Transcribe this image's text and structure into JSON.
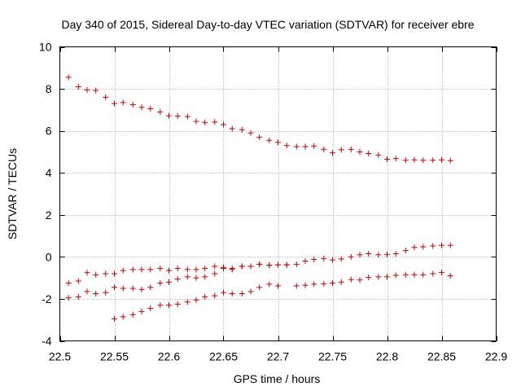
{
  "chart_data": {
    "type": "scatter",
    "title": "Day 340 of 2015, Sidereal Day-to-day VTEC variation (SDTVAR) for receiver ebre",
    "xlabel": "GPS time / hours",
    "ylabel": "SDTVAR / TECUs",
    "xlim": [
      22.5,
      22.9
    ],
    "ylim": [
      -4,
      10
    ],
    "xticks": [
      22.5,
      22.55,
      22.6,
      22.65,
      22.7,
      22.75,
      22.8,
      22.85,
      22.9
    ],
    "xtick_labels": [
      "22.5",
      "22.55",
      "22.6",
      "22.65",
      "22.7",
      "22.75",
      "22.8",
      "22.85",
      "22.9"
    ],
    "yticks": [
      -4,
      -2,
      0,
      2,
      4,
      6,
      8,
      10
    ],
    "ytick_labels": [
      "-4",
      "-2",
      "0",
      "2",
      "4",
      "6",
      "8",
      "10"
    ],
    "grid": true,
    "marker": "+",
    "color": "#cc0000",
    "series": [
      {
        "name": "series-1",
        "x": [
          22.508,
          22.517,
          22.525,
          22.533,
          22.542,
          22.55,
          22.558,
          22.567,
          22.575,
          22.583,
          22.592,
          22.6,
          22.608,
          22.617,
          22.625,
          22.633,
          22.642,
          22.65,
          22.658,
          22.667,
          22.675,
          22.683,
          22.692,
          22.7,
          22.708,
          22.717,
          22.725,
          22.733,
          22.742,
          22.75,
          22.758,
          22.767,
          22.775,
          22.783,
          22.792,
          22.8,
          22.808,
          22.817,
          22.825,
          22.833,
          22.842,
          22.85,
          22.858
        ],
        "y": [
          8.55,
          8.1,
          7.95,
          7.92,
          7.6,
          7.3,
          7.35,
          7.25,
          7.12,
          7.05,
          6.9,
          6.72,
          6.7,
          6.68,
          6.45,
          6.4,
          6.42,
          6.3,
          6.1,
          6.05,
          5.9,
          5.7,
          5.55,
          5.45,
          5.3,
          5.25,
          5.25,
          5.28,
          5.12,
          4.95,
          5.1,
          5.12,
          5.0,
          4.92,
          4.85,
          4.65,
          4.68,
          4.6,
          4.62,
          4.6,
          4.6,
          4.62,
          4.58
        ]
      },
      {
        "name": "series-2",
        "x": [
          22.508,
          22.517,
          22.525,
          22.533,
          22.542,
          22.55,
          22.558,
          22.567,
          22.575,
          22.583,
          22.592,
          22.6,
          22.608,
          22.617,
          22.625,
          22.633,
          22.642,
          22.65,
          22.658,
          22.667,
          22.675,
          22.683,
          22.692,
          22.7,
          22.708,
          22.717,
          22.725,
          22.733,
          22.742,
          22.75,
          22.758,
          22.767,
          22.775,
          22.783,
          22.792,
          22.8,
          22.808,
          22.817,
          22.825,
          22.833,
          22.842,
          22.85,
          22.858
        ],
        "y": [
          -1.25,
          -1.15,
          -0.75,
          -0.85,
          -0.8,
          -0.8,
          -0.65,
          -0.6,
          -0.6,
          -0.6,
          -0.55,
          -0.65,
          -0.55,
          -0.6,
          -0.6,
          -0.55,
          -0.45,
          -0.5,
          -0.55,
          -0.45,
          -0.45,
          -0.35,
          -0.4,
          -0.38,
          -0.38,
          -0.35,
          -0.2,
          -0.12,
          -0.08,
          -0.15,
          -0.1,
          0.0,
          0.1,
          0.15,
          0.1,
          0.12,
          0.15,
          0.3,
          0.45,
          0.48,
          0.52,
          0.55,
          0.55
        ]
      },
      {
        "name": "series-3",
        "x": [
          22.508,
          22.517,
          22.525,
          22.533,
          22.542,
          22.55,
          22.558,
          22.567,
          22.575,
          22.583,
          22.592,
          22.6,
          22.608,
          22.617,
          22.625,
          22.633,
          22.642,
          22.65,
          22.658,
          22.667,
          22.675,
          22.683,
          22.692,
          22.7,
          22.708,
          22.717,
          22.725,
          22.733,
          22.742,
          22.75,
          22.758,
          22.767,
          22.775,
          22.783,
          22.792,
          22.8,
          22.808,
          22.817,
          22.825,
          22.833,
          22.842,
          22.85,
          22.858
        ],
        "y": [
          -1.95,
          -1.9,
          -1.65,
          -1.75,
          -1.7,
          -1.45,
          -1.5,
          -1.5,
          -1.55,
          -1.45,
          -1.25,
          -1.2,
          -1.05,
          -0.95,
          -1.0,
          -0.95,
          -0.8,
          -0.55,
          -0.6,
          -0.45,
          -0.45,
          -0.35,
          -0.4,
          -0.38,
          -0.38,
          -1.38,
          -1.35,
          -1.3,
          -1.28,
          -1.25,
          -1.2,
          -1.08,
          -1.1,
          -0.98,
          -0.95,
          -0.95,
          -0.88,
          -0.85,
          -0.85,
          -0.85,
          -0.8,
          -0.75,
          -0.9
        ]
      },
      {
        "name": "series-4",
        "x": [
          22.55,
          22.558,
          22.567,
          22.575,
          22.583,
          22.592,
          22.6,
          22.608,
          22.617,
          22.625,
          22.633,
          22.642,
          22.65,
          22.658,
          22.667,
          22.675,
          22.683,
          22.692,
          22.7
        ],
        "y": [
          -2.95,
          -2.85,
          -2.75,
          -2.6,
          -2.45,
          -2.3,
          -2.3,
          -2.25,
          -2.15,
          -2.05,
          -1.9,
          -1.85,
          -1.7,
          -1.75,
          -1.75,
          -1.65,
          -1.45,
          -1.3,
          -1.38
        ]
      }
    ]
  }
}
